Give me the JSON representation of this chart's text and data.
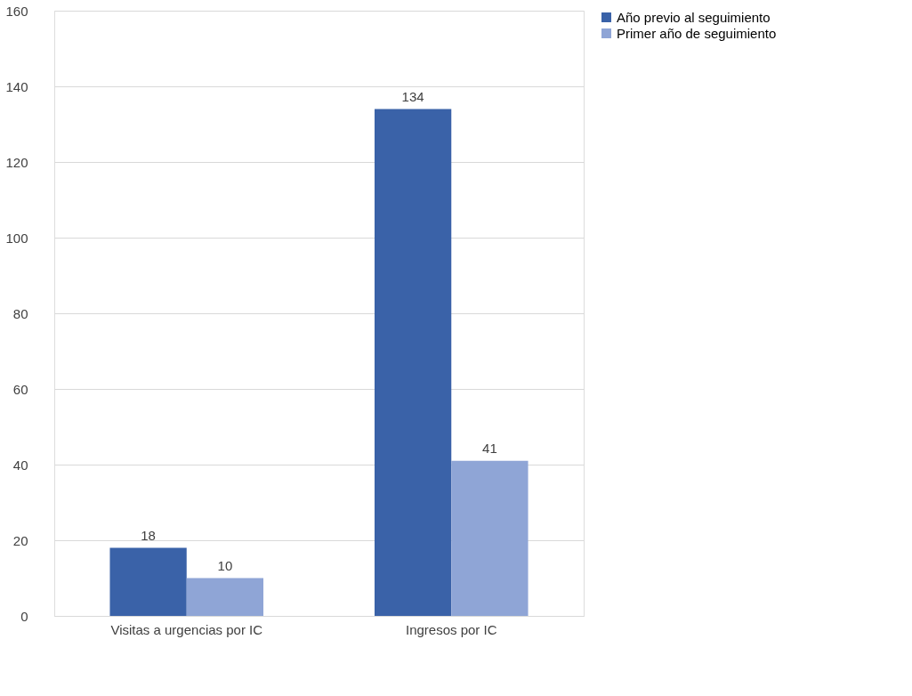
{
  "chart_data": {
    "type": "bar",
    "categories": [
      "Visitas a urgencias por IC",
      "Ingresos por IC"
    ],
    "series": [
      {
        "name": "Año previo al seguimiento",
        "color": "#3a62a8",
        "values": [
          18,
          134
        ]
      },
      {
        "name": "Primer año de seguimiento",
        "color": "#8fa5d6",
        "values": [
          10,
          41
        ]
      }
    ],
    "ylim": [
      0,
      160
    ],
    "yticks": [
      0,
      20,
      40,
      60,
      80,
      100,
      120,
      140,
      160
    ],
    "grid": "y",
    "legend": "right",
    "data_labels": true
  }
}
